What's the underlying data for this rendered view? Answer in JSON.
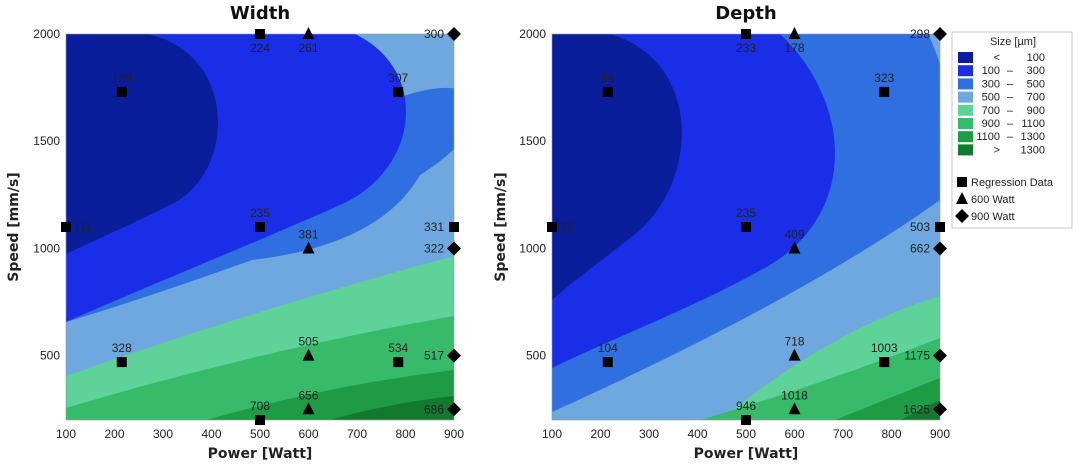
{
  "legend": {
    "title": "Size [µm]",
    "color_rows": [
      {
        "lo": "<",
        "hi": "100",
        "color": "#0a1d9a"
      },
      {
        "lo": "100",
        "hi": "300",
        "color": "#1a2ee8"
      },
      {
        "lo": "300",
        "hi": "500",
        "color": "#2f6fe0"
      },
      {
        "lo": "500",
        "hi": "700",
        "color": "#6fa8de"
      },
      {
        "lo": "700",
        "hi": "900",
        "color": "#5fd29a"
      },
      {
        "lo": "900",
        "hi": "1100",
        "color": "#37bb6b"
      },
      {
        "lo": "1100",
        "hi": "1300",
        "color": "#1f9a45"
      },
      {
        "lo": ">",
        "hi": "1300",
        "color": "#117a2e"
      }
    ],
    "marker_rows": [
      {
        "marker": "square",
        "label": "Regression Data"
      },
      {
        "marker": "triangle",
        "label": "600 Watt"
      },
      {
        "marker": "diamond",
        "label": "900 Watt"
      }
    ]
  },
  "chart_data": [
    {
      "type": "contour",
      "title": "Width",
      "xlabel": "Power [Watt]",
      "ylabel": "Speed [mm/s]",
      "xlim": [
        100,
        900
      ],
      "ylim": [
        200,
        2000
      ],
      "xticks": [
        100,
        200,
        300,
        400,
        500,
        600,
        700,
        800,
        900
      ],
      "yticks": [
        500,
        1000,
        1500,
        2000
      ],
      "levels": [
        100,
        300,
        500,
        700,
        900,
        1100,
        1300
      ],
      "points": [
        {
          "x": 100,
          "y": 1100,
          "marker": "square",
          "label": "111"
        },
        {
          "x": 215,
          "y": 1730,
          "marker": "square",
          "label": "129"
        },
        {
          "x": 500,
          "y": 2000,
          "marker": "square",
          "label": "224"
        },
        {
          "x": 500,
          "y": 1100,
          "marker": "square",
          "label": "235"
        },
        {
          "x": 785,
          "y": 1730,
          "marker": "square",
          "label": "307"
        },
        {
          "x": 215,
          "y": 470,
          "marker": "square",
          "label": "328"
        },
        {
          "x": 500,
          "y": 200,
          "marker": "square",
          "label": "708"
        },
        {
          "x": 785,
          "y": 470,
          "marker": "square",
          "label": "534"
        },
        {
          "x": 900,
          "y": 1100,
          "marker": "square",
          "label": "331"
        },
        {
          "x": 600,
          "y": 2000,
          "marker": "triangle",
          "label": "261"
        },
        {
          "x": 600,
          "y": 1000,
          "marker": "triangle",
          "label": "381"
        },
        {
          "x": 600,
          "y": 500,
          "marker": "triangle",
          "label": "505"
        },
        {
          "x": 600,
          "y": 250,
          "marker": "triangle",
          "label": "656"
        },
        {
          "x": 900,
          "y": 2000,
          "marker": "diamond",
          "label": "300"
        },
        {
          "x": 900,
          "y": 1000,
          "marker": "diamond",
          "label": "322"
        },
        {
          "x": 900,
          "y": 500,
          "marker": "diamond",
          "label": "517"
        },
        {
          "x": 900,
          "y": 250,
          "marker": "diamond",
          "label": "686"
        }
      ]
    },
    {
      "type": "contour",
      "title": "Depth",
      "xlabel": "Power [Watt]",
      "ylabel": "Speed [mm/s]",
      "xlim": [
        100,
        900
      ],
      "ylim": [
        200,
        2000
      ],
      "xticks": [
        100,
        200,
        300,
        400,
        500,
        600,
        700,
        800,
        900
      ],
      "yticks": [
        500,
        1000,
        1500,
        2000
      ],
      "levels": [
        100,
        300,
        500,
        700,
        900,
        1100,
        1300
      ],
      "points": [
        {
          "x": 100,
          "y": 1100,
          "marker": "square",
          "label": "32"
        },
        {
          "x": 215,
          "y": 1730,
          "marker": "square",
          "label": "58"
        },
        {
          "x": 500,
          "y": 2000,
          "marker": "square",
          "label": "233"
        },
        {
          "x": 500,
          "y": 1100,
          "marker": "square",
          "label": "235"
        },
        {
          "x": 785,
          "y": 1730,
          "marker": "square",
          "label": "323"
        },
        {
          "x": 215,
          "y": 470,
          "marker": "square",
          "label": "104"
        },
        {
          "x": 500,
          "y": 200,
          "marker": "square",
          "label": "946"
        },
        {
          "x": 785,
          "y": 470,
          "marker": "square",
          "label": "1003"
        },
        {
          "x": 900,
          "y": 1100,
          "marker": "square",
          "label": "503"
        },
        {
          "x": 600,
          "y": 2000,
          "marker": "triangle",
          "label": "178"
        },
        {
          "x": 600,
          "y": 1000,
          "marker": "triangle",
          "label": "409"
        },
        {
          "x": 600,
          "y": 500,
          "marker": "triangle",
          "label": "718"
        },
        {
          "x": 600,
          "y": 250,
          "marker": "triangle",
          "label": "1018"
        },
        {
          "x": 900,
          "y": 2000,
          "marker": "diamond",
          "label": "298"
        },
        {
          "x": 900,
          "y": 1000,
          "marker": "diamond",
          "label": "662"
        },
        {
          "x": 900,
          "y": 500,
          "marker": "diamond",
          "label": "1175"
        },
        {
          "x": 900,
          "y": 250,
          "marker": "diamond",
          "label": "1625"
        }
      ]
    }
  ]
}
